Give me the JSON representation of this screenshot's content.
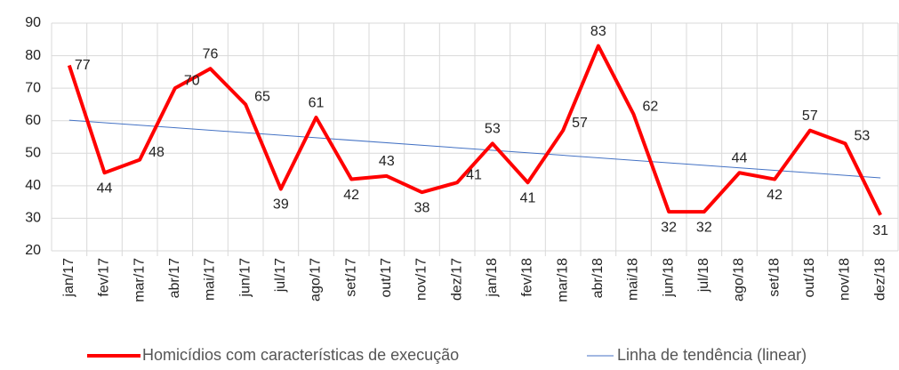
{
  "chart_data": {
    "type": "line",
    "categories": [
      "jan/17",
      "fev/17",
      "mar/17",
      "abr/17",
      "mai/17",
      "jun/17",
      "jul/17",
      "ago/17",
      "set/17",
      "out/17",
      "nov/17",
      "dez/17",
      "jan/18",
      "fev/18",
      "mar/18",
      "abr/18",
      "mai/18",
      "jun/18",
      "jul/18",
      "ago/18",
      "set/18",
      "out/18",
      "nov/18",
      "dez/18"
    ],
    "series": [
      {
        "name": "Homicídios com características de execução",
        "color": "#ff0000",
        "values": [
          77,
          44,
          48,
          70,
          76,
          65,
          39,
          61,
          42,
          43,
          38,
          41,
          53,
          41,
          57,
          83,
          62,
          32,
          32,
          44,
          42,
          57,
          53,
          31
        ]
      }
    ],
    "trendline": {
      "name": "Linha de tendência (linear)",
      "color": "#4472c4",
      "fit": "linear"
    },
    "ylim": [
      20,
      90
    ],
    "yticks": [
      20,
      30,
      40,
      50,
      60,
      70,
      80,
      90
    ],
    "grid": true,
    "data_labels": true,
    "legend": "bottom"
  }
}
